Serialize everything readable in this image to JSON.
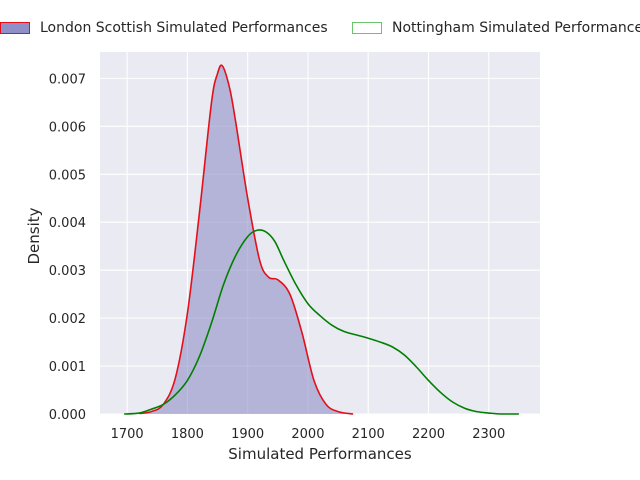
{
  "chart_data": {
    "type": "area",
    "xlabel": "Simulated Performances",
    "ylabel": "Density",
    "xlim": [
      1655,
      2385
    ],
    "ylim": [
      0,
      0.00755
    ],
    "xticks": [
      1700,
      1800,
      1900,
      2000,
      2100,
      2200,
      2300
    ],
    "xtick_labels": [
      "1700",
      "1800",
      "1900",
      "2000",
      "2100",
      "2200",
      "2300"
    ],
    "yticks": [
      0,
      0.001,
      0.002,
      0.003,
      0.004,
      0.005,
      0.006,
      0.007
    ],
    "ytick_labels": [
      "0.000",
      "0.001",
      "0.002",
      "0.003",
      "0.004",
      "0.005",
      "0.006",
      "0.007"
    ],
    "grid": true,
    "legend_position": "top",
    "series": [
      {
        "name": "London Scottish Simulated Performances",
        "kind": "filled-kde",
        "line_color": "#e3101a",
        "fill_color": "#9090c8",
        "fill_opacity": 0.6,
        "x": [
          1720,
          1740,
          1760,
          1780,
          1800,
          1820,
          1840,
          1850,
          1858,
          1870,
          1880,
          1900,
          1920,
          1935,
          1950,
          1970,
          1990,
          2010,
          2030,
          2050,
          2075
        ],
        "y": [
          1e-05,
          5e-05,
          0.0002,
          0.00075,
          0.0021,
          0.0042,
          0.0065,
          0.0071,
          0.00726,
          0.0068,
          0.0061,
          0.0045,
          0.0032,
          0.00285,
          0.0028,
          0.0025,
          0.0017,
          0.0007,
          0.0002,
          5e-05,
          0.0
        ]
      },
      {
        "name": "Nottingham Simulated Performances",
        "kind": "kde",
        "line_color": "#008000",
        "x": [
          1695,
          1720,
          1740,
          1760,
          1780,
          1800,
          1820,
          1840,
          1860,
          1880,
          1900,
          1915,
          1930,
          1945,
          1960,
          1980,
          2000,
          2020,
          2040,
          2060,
          2080,
          2100,
          2120,
          2140,
          2160,
          2180,
          2200,
          2220,
          2240,
          2260,
          2280,
          2300,
          2320,
          2350
        ],
        "y": [
          0.0,
          2e-05,
          0.0001,
          0.0002,
          0.0004,
          0.0007,
          0.0012,
          0.0019,
          0.0027,
          0.0033,
          0.0037,
          0.00383,
          0.0038,
          0.0036,
          0.0032,
          0.0027,
          0.0023,
          0.00205,
          0.00185,
          0.00172,
          0.00165,
          0.00158,
          0.0015,
          0.0014,
          0.00123,
          0.00098,
          0.0007,
          0.00045,
          0.00025,
          0.00012,
          5e-05,
          2e-05,
          0.0,
          0.0
        ]
      }
    ]
  }
}
